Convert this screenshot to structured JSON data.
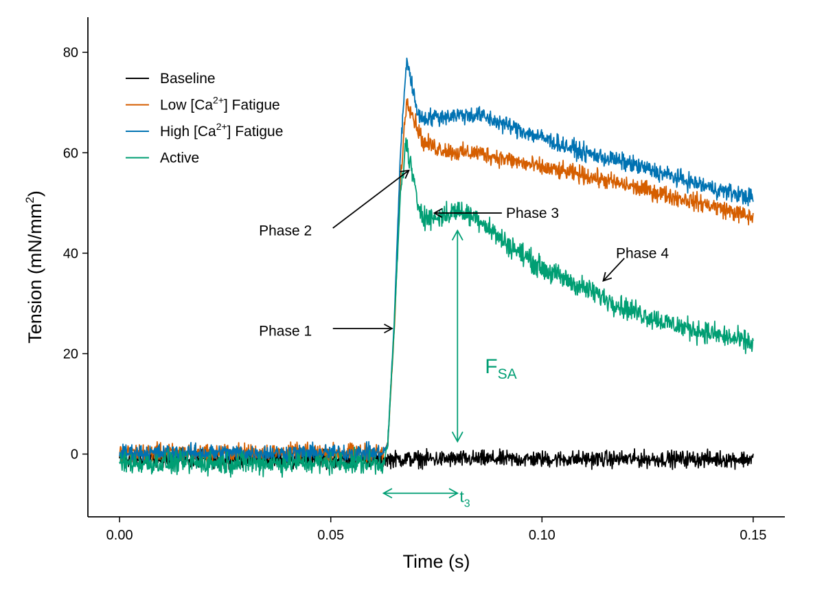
{
  "chart_data": {
    "type": "line",
    "title": "",
    "xlabel": "Time (s)",
    "ylabel": {
      "main": "Tension (mN/mm",
      "sup": "2",
      "close": ")"
    },
    "xlim": [
      -0.0075,
      0.1575
    ],
    "ylim": [
      -12.5,
      87
    ],
    "x_ticks": [
      0.0,
      0.05,
      0.1,
      0.15
    ],
    "x_tick_labels": [
      "0.00",
      "0.05",
      "0.10",
      "0.15"
    ],
    "y_ticks": [
      0,
      20,
      40,
      60,
      80
    ],
    "y_tick_labels": [
      "0",
      "20",
      "40",
      "60",
      "80"
    ],
    "grid": false,
    "legend_position": "top-left",
    "series": [
      {
        "name": "Baseline",
        "legend": {
          "pre": "Baseline",
          "sup": "",
          "post": ""
        },
        "color": "#000000",
        "noise": 1.4,
        "x": [
          0.0,
          0.15
        ],
        "y": [
          -1.0,
          -1.0
        ]
      },
      {
        "name": "Low [Ca2+] Fatigue",
        "legend": {
          "pre": "Low [Ca",
          "sup": "2+",
          "post": "] Fatigue"
        },
        "color": "#D55E00",
        "noise": 1.5,
        "x": [
          0.0,
          0.0625,
          0.0635,
          0.065,
          0.0665,
          0.068,
          0.07,
          0.072,
          0.075,
          0.08,
          0.085,
          0.09,
          0.1,
          0.11,
          0.12,
          0.13,
          0.14,
          0.15
        ],
        "y": [
          0.3,
          0.3,
          2.0,
          24.0,
          55.0,
          71.0,
          66.0,
          62.0,
          61.0,
          60.0,
          60.0,
          59.0,
          57.0,
          55.5,
          53.5,
          51.5,
          49.5,
          47.0
        ]
      },
      {
        "name": "High [Ca2+] Fatigue",
        "legend": {
          "pre": "High [Ca",
          "sup": "2+",
          "post": "] Fatigue"
        },
        "color": "#0072B2",
        "noise": 1.5,
        "x": [
          0.0,
          0.0625,
          0.0635,
          0.065,
          0.0665,
          0.068,
          0.0695,
          0.071,
          0.073,
          0.08,
          0.085,
          0.09,
          0.1,
          0.11,
          0.12,
          0.13,
          0.14,
          0.15
        ],
        "y": [
          0.2,
          0.2,
          2.0,
          26.0,
          60.0,
          79.0,
          72.0,
          67.0,
          67.0,
          67.5,
          67.5,
          66.0,
          63.0,
          60.0,
          58.0,
          55.5,
          53.0,
          51.0
        ]
      },
      {
        "name": "Active",
        "legend": {
          "pre": "Active",
          "sup": "",
          "post": ""
        },
        "color": "#009E73",
        "noise": 1.9,
        "x": [
          0.0,
          0.0625,
          0.0635,
          0.065,
          0.0665,
          0.0678,
          0.069,
          0.0705,
          0.0725,
          0.075,
          0.08,
          0.085,
          0.09,
          0.1,
          0.11,
          0.12,
          0.13,
          0.14,
          0.15
        ],
        "y": [
          -1.8,
          -1.8,
          2.0,
          25.0,
          52.0,
          62.0,
          57.0,
          50.0,
          47.0,
          47.0,
          48.5,
          47.0,
          43.0,
          37.0,
          33.0,
          29.0,
          26.0,
          24.0,
          22.0
        ]
      }
    ],
    "annotations": {
      "phase1": {
        "label": "Phase 1",
        "text_at": [
          0.033,
          24.5
        ],
        "arrow_from": [
          0.0505,
          25.0
        ],
        "arrow_to": [
          0.0645,
          25.0
        ]
      },
      "phase2": {
        "label": "Phase 2",
        "text_at": [
          0.033,
          44.5
        ],
        "arrow_from": [
          0.0505,
          45.0
        ],
        "arrow_to": [
          0.0685,
          56.5
        ]
      },
      "phase3": {
        "label": "Phase 3",
        "text_at": [
          0.0915,
          48.0
        ],
        "arrow_from": [
          0.0905,
          48.0
        ],
        "arrow_to": [
          0.0745,
          48.0
        ]
      },
      "phase4": {
        "label": "Phase 4",
        "text_at": [
          0.1175,
          40.0
        ],
        "arrow_from": [
          0.1195,
          39.0
        ],
        "arrow_to": [
          0.1145,
          34.5
        ]
      },
      "fsa": {
        "main": "F",
        "sub": "SA",
        "text_at": [
          0.0865,
          17.5
        ],
        "arrow_x": 0.08,
        "arrow_from_y": 44.5,
        "arrow_to_y": 2.5
      },
      "t3": {
        "main": "t",
        "sub": "3",
        "text_at": [
          0.0805,
          -9.0
        ],
        "arrow_y": -7.8,
        "arrow_from_x": 0.0625,
        "arrow_to_x": 0.08
      }
    }
  }
}
